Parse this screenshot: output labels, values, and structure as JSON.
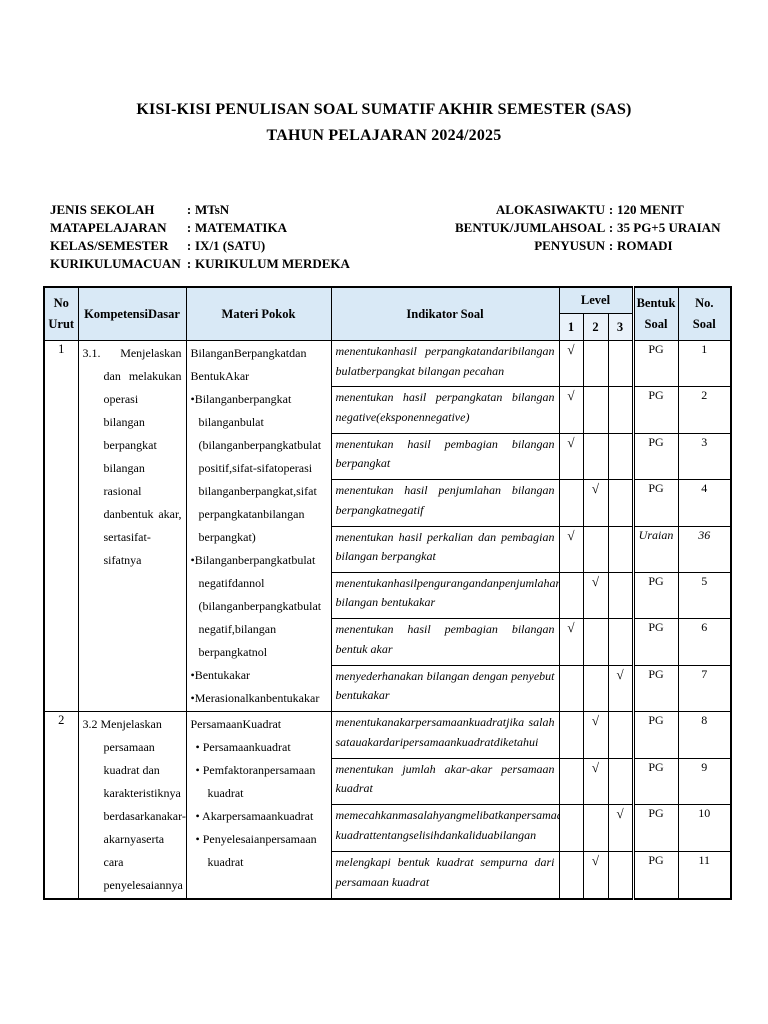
{
  "colors": {
    "header_fill": "#d9e9f6",
    "header_fill_sub": "#eaf2fa"
  },
  "colon": ":",
  "check_mark": "√",
  "title": {
    "line1": "KISI-KISI PENULISAN SOAL SUMATIF AKHIR SEMESTER (SAS)",
    "line2": "TAHUN PELAJARAN 2024/2025"
  },
  "meta_left": [
    {
      "label": "JENIS SEKOLAH",
      "value": "MTsN"
    },
    {
      "label": "MATAPELAJARAN",
      "value": "MATEMATIKA"
    },
    {
      "label": "KELAS/SEMESTER",
      "value": "IX/1 (SATU)"
    },
    {
      "label": "KURIKULUMACUAN",
      "value": "KURIKULUM MERDEKA"
    }
  ],
  "meta_right": [
    {
      "label": "ALOKASIWAKTU",
      "value": "120  MENIT"
    },
    {
      "label": "BENTUK/JUMLAHSOAL",
      "value": "35 PG+5 URAIAN"
    },
    {
      "label": "PENYUSUN",
      "value": "ROMADI"
    }
  ],
  "table": {
    "headers": {
      "no_line1": "No",
      "no_line2": "Urut",
      "kd": "KompetensiDasar",
      "materi": "Materi Pokok",
      "indikator": "Indikator Soal",
      "level": "Level",
      "level_cols": [
        "1",
        "2",
        "3"
      ],
      "bentuk_line1": "Bentuk",
      "bentuk_line2": "Soal",
      "nosoal_line1": "No.",
      "nosoal_line2": "Soal"
    },
    "rows": [
      {
        "no": "1",
        "kd": "3.1. Menjelaskan dan melakukan operasi bilangan berpangkat bilangan rasional danbentuk akar, sertasifat-sifatnya",
        "kd_justify": true,
        "materi_title": "BilanganBerpangkatdan BentukAkar",
        "bullet_style": "tight",
        "bullet_char": "•",
        "materi_items": [
          "Bilanganberpangkat bilanganbulat (bilanganberpangkatbulat positif,sifat-sifatoperasi bilanganberpangkat,sifat perpangkatanbilangan berpangkat)",
          "Bilanganberpangkatbulat negatifdannol (bilanganberpangkatbulat negatif,bilangan berpangkatnol",
          "Bentukakar",
          "Merasionalkanbentukakar"
        ],
        "indicators": [
          {
            "text": "menentukanhasil perpangkatandaribilangan bulatberpangkat bilangan pecahan",
            "level": 1,
            "bentuk": "PG",
            "no": "1",
            "italic": false
          },
          {
            "text": "menentukan hasil perpangkatan bilangan negative(eksponennegative)",
            "level": 1,
            "bentuk": "PG",
            "no": "2",
            "italic": false
          },
          {
            "text": "menentukan hasil pembagian bilangan berpangkat",
            "level": 1,
            "bentuk": "PG",
            "no": "3",
            "italic": false
          },
          {
            "text": "menentukan hasil penjumlahan bilangan berpangkatnegatif",
            "level": 2,
            "bentuk": "PG",
            "no": "4",
            "italic": false
          },
          {
            "text": "menentukan hasil perkalian dan pembagian bilangan berpangkat",
            "level": 1,
            "bentuk": "Uraian",
            "no": "36",
            "italic": true
          },
          {
            "text": "menentukanhasilpengurangandanpenjumlahan bilangan bentukakar",
            "level": 2,
            "bentuk": "PG",
            "no": "5",
            "italic": false
          },
          {
            "text": "menentukan hasil pembagian bilangan bentuk akar",
            "level": 1,
            "bentuk": "PG",
            "no": "6",
            "italic": false
          },
          {
            "text": "menyederhanakan bilangan dengan penyebut bentukakar",
            "level": 3,
            "bentuk": "PG",
            "no": "7",
            "italic": false
          }
        ]
      },
      {
        "no": "2",
        "kd": "3.2 Menjelaskan persamaan kuadrat dan karakteristiknya berdasarkanakar-akarnyaserta cara penyelesaiannya",
        "kd_justify": false,
        "materi_title": "PersamaanKuadrat",
        "bullet_style": "gap",
        "bullet_char": "•",
        "materi_items": [
          "Persamaankuadrat",
          "Pemfaktoranpersamaan kuadrat",
          "Akarpersamaankuadrat",
          "Penyelesaianpersamaan kuadrat"
        ],
        "indicators": [
          {
            "text": "menentukanakarpersamaankuadratjika salah satauakardaripersamaankuadratdiketahui",
            "level": 2,
            "bentuk": "PG",
            "no": "8",
            "italic": false
          },
          {
            "text": "menentukan jumlah akar-akar persamaan kuadrat",
            "level": 2,
            "bentuk": "PG",
            "no": "9",
            "italic": false
          },
          {
            "text": "memecahkanmasalahyangmelibatkanpersamaan kuadrattentangselisihdankaliduabilangan",
            "level": 3,
            "bentuk": "PG",
            "no": "10",
            "italic": false
          },
          {
            "text": "melengkapi bentuk kuadrat sempurna dari persamaan kuadrat",
            "level": 2,
            "bentuk": "PG",
            "no": "11",
            "italic": false
          }
        ]
      }
    ]
  }
}
